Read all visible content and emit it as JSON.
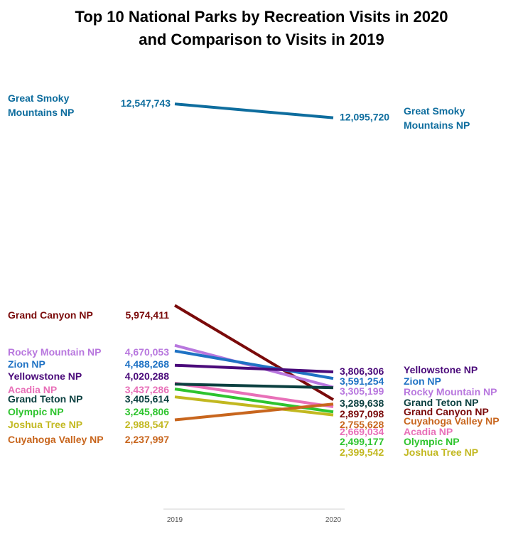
{
  "chart_data": {
    "type": "line",
    "title": "Top 10 National Parks by Recreation Visits in 2020",
    "subtitle": "and Comparison to Visits in 2019",
    "categories": [
      "2019",
      "2020"
    ],
    "series": [
      {
        "name": "Great Smoky Mountains NP",
        "name_lines": [
          "Great Smoky",
          "Mountains NP"
        ],
        "values": [
          12547743,
          12095720
        ],
        "labels": [
          "12,547,743",
          "12,095,720"
        ],
        "color": "#0e6d9e"
      },
      {
        "name": "Grand Canyon NP",
        "values": [
          5974411,
          2897098
        ],
        "labels": [
          "5,974,411",
          "2,897,098"
        ],
        "color": "#7a0a0a"
      },
      {
        "name": "Rocky Mountain NP",
        "values": [
          4670053,
          3305199
        ],
        "labels": [
          "4,670,053",
          "3,305,199"
        ],
        "color": "#b877de"
      },
      {
        "name": "Zion NP",
        "values": [
          4488268,
          3591254
        ],
        "labels": [
          "4,488,268",
          "3,591,254"
        ],
        "color": "#1f72c4"
      },
      {
        "name": "Yellowstone NP",
        "values": [
          4020288,
          3806306
        ],
        "labels": [
          "4,020,288",
          "3,806,306"
        ],
        "color": "#4a0a7a"
      },
      {
        "name": "Acadia NP",
        "values": [
          3437286,
          2669034
        ],
        "labels": [
          "3,437,286",
          "2,669,034"
        ],
        "color": "#e870b8"
      },
      {
        "name": "Grand Teton NP",
        "values": [
          3405614,
          3289638
        ],
        "labels": [
          "3,405,614",
          "3,289,638"
        ],
        "color": "#0b4040"
      },
      {
        "name": "Olympic NP",
        "values": [
          3245806,
          2499177
        ],
        "labels": [
          "3,245,806",
          "2,499,177"
        ],
        "color": "#2ec42e"
      },
      {
        "name": "Joshua Tree NP",
        "values": [
          2988547,
          2399542
        ],
        "labels": [
          "2,988,547",
          "2,399,542"
        ],
        "color": "#c2b820"
      },
      {
        "name": "Cuyahoga Valley NP",
        "values": [
          2237997,
          2755628
        ],
        "labels": [
          "2,237,997",
          "2,755,628"
        ],
        "color": "#c8661e"
      }
    ]
  }
}
